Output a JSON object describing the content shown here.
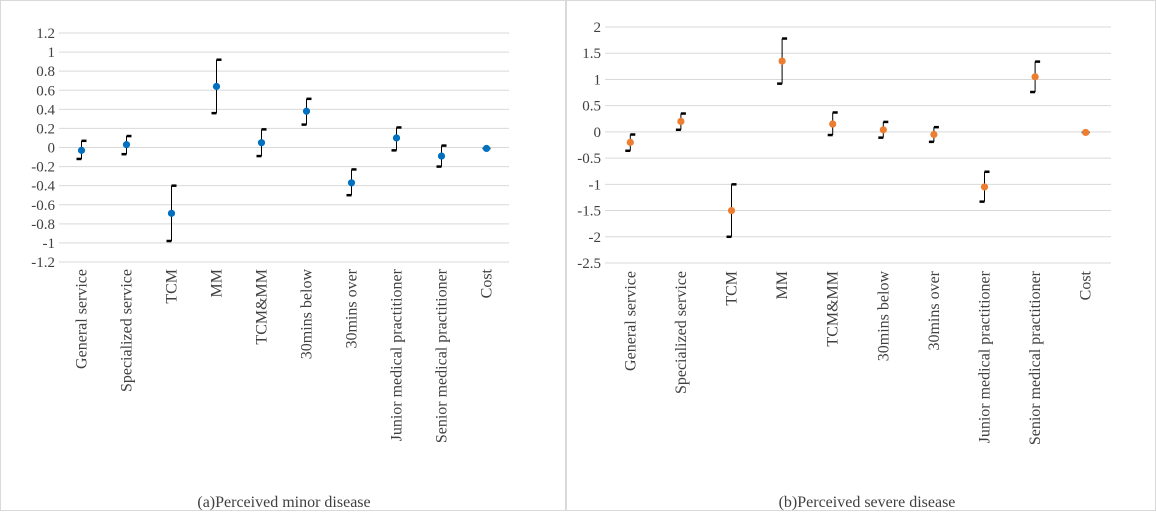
{
  "chart_data": [
    {
      "type": "scatter",
      "title": "(a)Perceived minor disease",
      "categories": [
        "General service",
        "Specialized service",
        "TCM",
        "MM",
        "TCM&MM",
        "30mins below",
        "30mins over",
        "Junior medical practitioner",
        "Senior medical practitioner",
        "Cost"
      ],
      "values": [
        -0.03,
        0.03,
        -0.69,
        0.64,
        0.05,
        0.38,
        -0.37,
        0.1,
        -0.09,
        -0.01
      ],
      "error_low": [
        -0.12,
        -0.07,
        -0.98,
        0.36,
        -0.09,
        0.24,
        -0.5,
        -0.03,
        -0.2,
        -0.01
      ],
      "error_high": [
        0.07,
        0.12,
        -0.4,
        0.92,
        0.19,
        0.51,
        -0.23,
        0.21,
        0.02,
        -0.01
      ],
      "yticks": [
        "1.2",
        "1",
        "0.8",
        "0.6",
        "0.4",
        "0.2",
        "0",
        "-0.2",
        "-0.4",
        "-0.6",
        "-0.8",
        "-1",
        "-1.2"
      ],
      "ylim": [
        -1.2,
        1.2
      ],
      "grid": true,
      "color": "#0070c0"
    },
    {
      "type": "scatter",
      "title": "(b)Perceived severe disease",
      "categories": [
        "General service",
        "Specialized service",
        "TCM",
        "MM",
        "TCM&MM",
        "30mins below",
        "30mins over",
        "Junior medical practitioner",
        "Senior medical practitioner",
        "Cost"
      ],
      "values": [
        -0.2,
        0.2,
        -1.5,
        1.35,
        0.15,
        0.04,
        -0.05,
        -1.05,
        1.05,
        -0.01
      ],
      "error_low": [
        -0.36,
        0.04,
        -2.0,
        0.92,
        -0.06,
        -0.11,
        -0.19,
        -1.33,
        0.76,
        -0.01
      ],
      "error_high": [
        -0.05,
        0.35,
        -1.0,
        1.78,
        0.37,
        0.19,
        0.09,
        -0.76,
        1.34,
        -0.01
      ],
      "yticks": [
        "2",
        "1.5",
        "1",
        "0.5",
        "0",
        "-0.5",
        "-1",
        "-1.5",
        "-2",
        "-2.5"
      ],
      "ylim": [
        -2.5,
        2.0
      ],
      "grid": true,
      "color": "#ed7d31"
    }
  ]
}
